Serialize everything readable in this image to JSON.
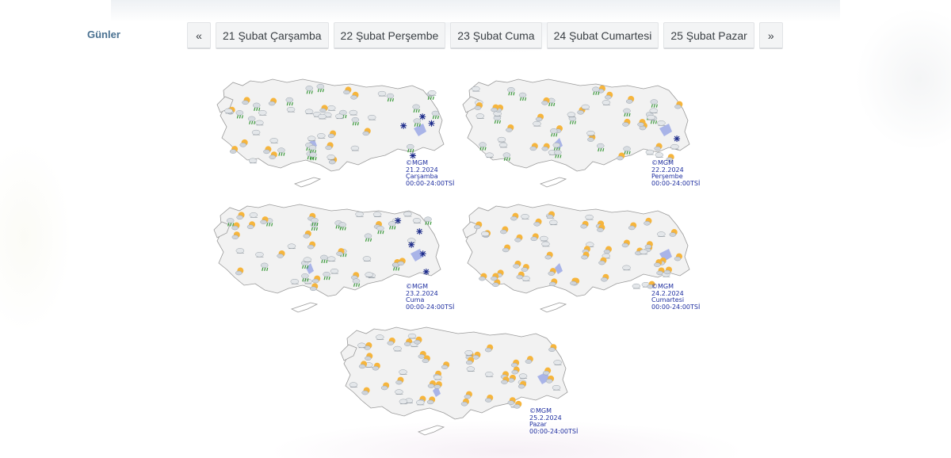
{
  "days_label": "Günler",
  "pager": {
    "prev": "«",
    "next": "»",
    "days": [
      "21 Şubat Çarşamba",
      "22 Şubat Perşembe",
      "23 Şubat Cuma",
      "24 Şubat Cumartesi",
      "25 Şubat Pazar"
    ]
  },
  "maps": [
    {
      "copyright": "©MGM",
      "date": "21.2.2024",
      "day": "Çarşamba",
      "hours": "00:00-24:00TSİ",
      "weather": [
        "partly-cloudy",
        "rain-showers",
        "cloudy",
        "snow"
      ]
    },
    {
      "copyright": "©MGM",
      "date": "22.2.2024",
      "day": "Perşembe",
      "hours": "00:00-24:00TSİ",
      "weather": [
        "partly-cloudy",
        "rain-showers",
        "cloudy",
        "snow"
      ]
    },
    {
      "copyright": "©MGM",
      "date": "23.2.2024",
      "day": "Cuma",
      "hours": "00:00-24:00TSİ",
      "weather": [
        "partly-cloudy",
        "rain-showers",
        "cloudy",
        "snow"
      ]
    },
    {
      "copyright": "©MGM",
      "date": "24.2.2024",
      "day": "Cumartesi",
      "hours": "00:00-24:00TSİ",
      "weather": [
        "partly-cloudy",
        "rain-showers",
        "cloudy"
      ]
    },
    {
      "copyright": "©MGM",
      "date": "25.2.2024",
      "day": "Pazar",
      "hours": "00:00-24:00TSİ",
      "weather": [
        "partly-cloudy",
        "cloudy"
      ]
    }
  ],
  "colors": {
    "label": "#4a7191",
    "caption": "#1f2fa0",
    "land": "#f2f2f2",
    "lake": "#a9b4e8",
    "sun": "#f6b53c",
    "rain": "#3c9a3c",
    "snow": "#1b2a8a"
  }
}
